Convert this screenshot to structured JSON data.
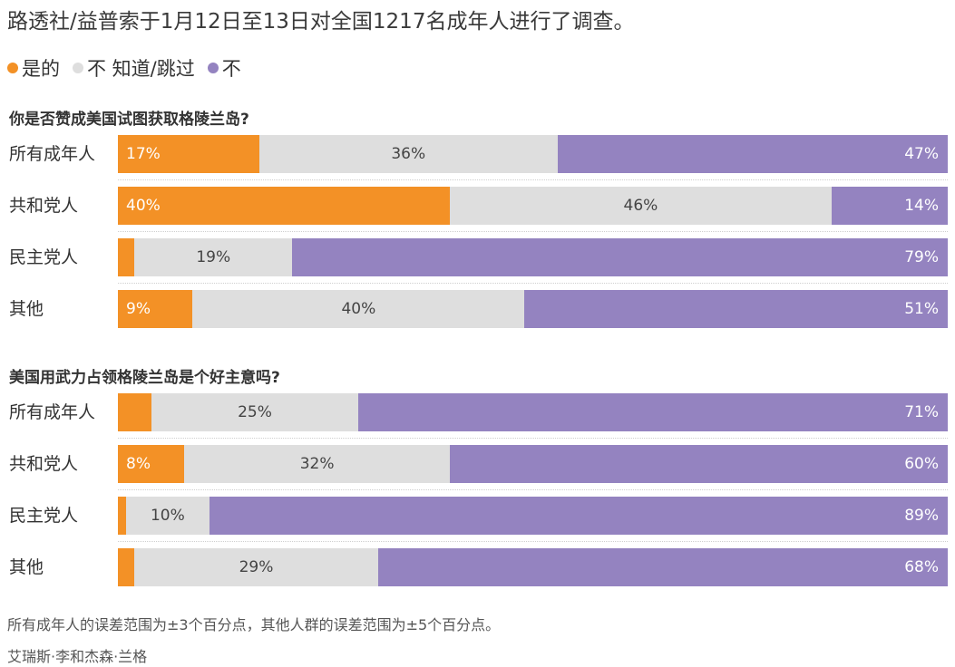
{
  "subtitle": "路透社/益普索于1月12日至13日对全国1217名成年人进行了调查。",
  "legend": [
    {
      "label": "是的",
      "color": "#f39126"
    },
    {
      "label": "不 知道/跳过",
      "color": "#dedede"
    },
    {
      "label": "不",
      "color": "#9483c0"
    }
  ],
  "colors": {
    "yes": "#f39126",
    "unsure": "#dedede",
    "no": "#9483c0"
  },
  "chart_data": [
    {
      "type": "bar",
      "orientation": "horizontal-stacked",
      "title": "你是否赞成美国试图获取格陵兰岛?",
      "categories": [
        "所有成年人",
        "共和党人",
        "民主党人",
        "其他"
      ],
      "series": [
        {
          "name": "是的",
          "values": [
            17,
            40,
            2,
            9
          ],
          "labels": [
            "17%",
            "40%",
            "",
            "9%"
          ]
        },
        {
          "name": "不 知道/跳过",
          "values": [
            36,
            46,
            19,
            40
          ],
          "labels": [
            "36%",
            "46%",
            "19%",
            "40%"
          ]
        },
        {
          "name": "不",
          "values": [
            47,
            14,
            79,
            51
          ],
          "labels": [
            "47%",
            "14%",
            "79%",
            "51%"
          ]
        }
      ]
    },
    {
      "type": "bar",
      "orientation": "horizontal-stacked",
      "title": "美国用武力占领格陵兰岛是个好主意吗?",
      "categories": [
        "所有成年人",
        "共和党人",
        "民主党人",
        "其他"
      ],
      "series": [
        {
          "name": "是的",
          "values": [
            4,
            8,
            1,
            2
          ],
          "labels": [
            "",
            "8%",
            "",
            ""
          ]
        },
        {
          "name": "不 知道/跳过",
          "values": [
            25,
            32,
            10,
            29
          ],
          "labels": [
            "25%",
            "32%",
            "10%",
            "29%"
          ]
        },
        {
          "name": "不",
          "values": [
            71,
            60,
            89,
            68
          ],
          "labels": [
            "71%",
            "60%",
            "89%",
            "68%"
          ]
        }
      ]
    }
  ],
  "footnote": "所有成年人的误差范围为±3个百分点，其他人群的误差范围为±5个百分点。",
  "credit": "艾瑞斯·李和杰森·兰格"
}
